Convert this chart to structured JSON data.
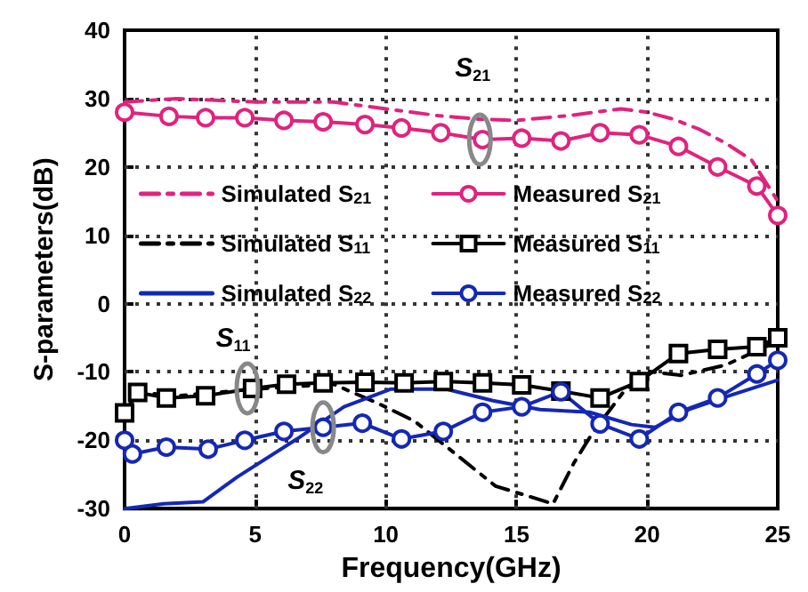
{
  "chart_data": {
    "type": "line",
    "xlabel": "Frequency(GHz)",
    "ylabel": "S-parameters(dB)",
    "xlim": [
      0,
      25
    ],
    "xticks": [
      0,
      5,
      10,
      15,
      20,
      25
    ],
    "ylim": [
      -30,
      40
    ],
    "yticks": [
      -30,
      -20,
      -10,
      0,
      10,
      20,
      30,
      40
    ],
    "grid": true,
    "legend": "top",
    "annotations": [
      {
        "text": "S$_{21}$",
        "x": 13.6,
        "y": 24
      },
      {
        "text": "S$_{11}$",
        "x": 4.7,
        "y": -12.4
      },
      {
        "text": "S$_{22}$",
        "x": 7.6,
        "y": -18.1
      }
    ],
    "series": [
      {
        "name": "Simulated S$_{21}$",
        "color": "#e0237e",
        "line_style": "dashed",
        "marker": "none",
        "x": [
          0,
          2,
          5,
          8,
          10,
          12,
          13.5,
          15,
          17,
          19,
          20,
          21,
          22,
          23,
          24,
          25
        ],
        "values": [
          29.5,
          30,
          29.5,
          29.5,
          28.5,
          27.5,
          27,
          26.8,
          27.5,
          28.5,
          28,
          27,
          25.5,
          23.5,
          21,
          15
        ]
      },
      {
        "name": "Measured S$_{21}$",
        "color": "#e0237e",
        "line_style": "solid",
        "marker": "circle",
        "x": [
          0,
          1.7,
          3.1,
          4.6,
          6.1,
          7.6,
          9.2,
          10.6,
          12.1,
          13.7,
          15.2,
          16.7,
          18.2,
          19.7,
          21.2,
          22.7,
          24.2,
          25
        ],
        "values": [
          28,
          27.4,
          27.2,
          27.2,
          26.8,
          26.6,
          26.2,
          25.7,
          25,
          24,
          24.2,
          23.8,
          25,
          24.7,
          23,
          20,
          17.2,
          12.9
        ]
      },
      {
        "name": "Simulated S$_{11}$",
        "color": "#000000",
        "line_style": "dashed",
        "marker": "none",
        "x": [
          0,
          0.5,
          2,
          5,
          8,
          9.7,
          11.1,
          14.2,
          16.4,
          17.2,
          17.9,
          19.1,
          20,
          21.3,
          23,
          25
        ],
        "values": [
          -16,
          -13,
          -13.5,
          -12.5,
          -11.8,
          -14.6,
          -17.2,
          -26.7,
          -29.3,
          -23.3,
          -19,
          -12.9,
          -9.9,
          -10.5,
          -9,
          -5.5
        ]
      },
      {
        "name": "Measured S$_{11}$",
        "color": "#000000",
        "line_style": "solid",
        "marker": "square",
        "x": [
          0,
          0.5,
          1.6,
          3.1,
          4.9,
          6.2,
          7.6,
          9.2,
          10.7,
          12.2,
          13.7,
          15.2,
          16.7,
          18.2,
          19.7,
          21.2,
          22.7,
          24.2,
          25
        ],
        "values": [
          -16,
          -13,
          -13.8,
          -13.5,
          -12.4,
          -11.8,
          -11.6,
          -11.5,
          -11.6,
          -11.4,
          -11.6,
          -11.9,
          -12.8,
          -13.8,
          -11.4,
          -7.3,
          -6.7,
          -6.3,
          -5
        ]
      },
      {
        "name": "Simulated S$_{22}$",
        "color": "#1428b4",
        "line_style": "solid",
        "marker": "none",
        "x": [
          0,
          1.5,
          3,
          4.3,
          6.6,
          8.4,
          10.2,
          12.3,
          14.1,
          15.9,
          17.8,
          19.4,
          20.3,
          21.6,
          23.2,
          25
        ],
        "values": [
          -30,
          -29.3,
          -29,
          -25.4,
          -19.8,
          -15.1,
          -12.5,
          -12.5,
          -14.2,
          -15.5,
          -15.9,
          -17.7,
          -18.1,
          -15.5,
          -13.4,
          -11.2
        ]
      },
      {
        "name": "Measured S$_{22}$",
        "color": "#1428b4",
        "line_style": "solid",
        "marker": "circle",
        "x": [
          0,
          0.3,
          1.6,
          3.2,
          4.6,
          6.1,
          7.6,
          9.1,
          10.6,
          12.2,
          13.7,
          15.2,
          16.7,
          18.2,
          19.7,
          21.2,
          22.7,
          24.2,
          25
        ],
        "values": [
          -20,
          -22,
          -21,
          -21.3,
          -20,
          -18.7,
          -18.1,
          -17.5,
          -19.8,
          -18.7,
          -15.9,
          -15.1,
          -12.9,
          -17.6,
          -19.8,
          -15.9,
          -13.8,
          -10.3,
          -8.3
        ]
      }
    ]
  }
}
